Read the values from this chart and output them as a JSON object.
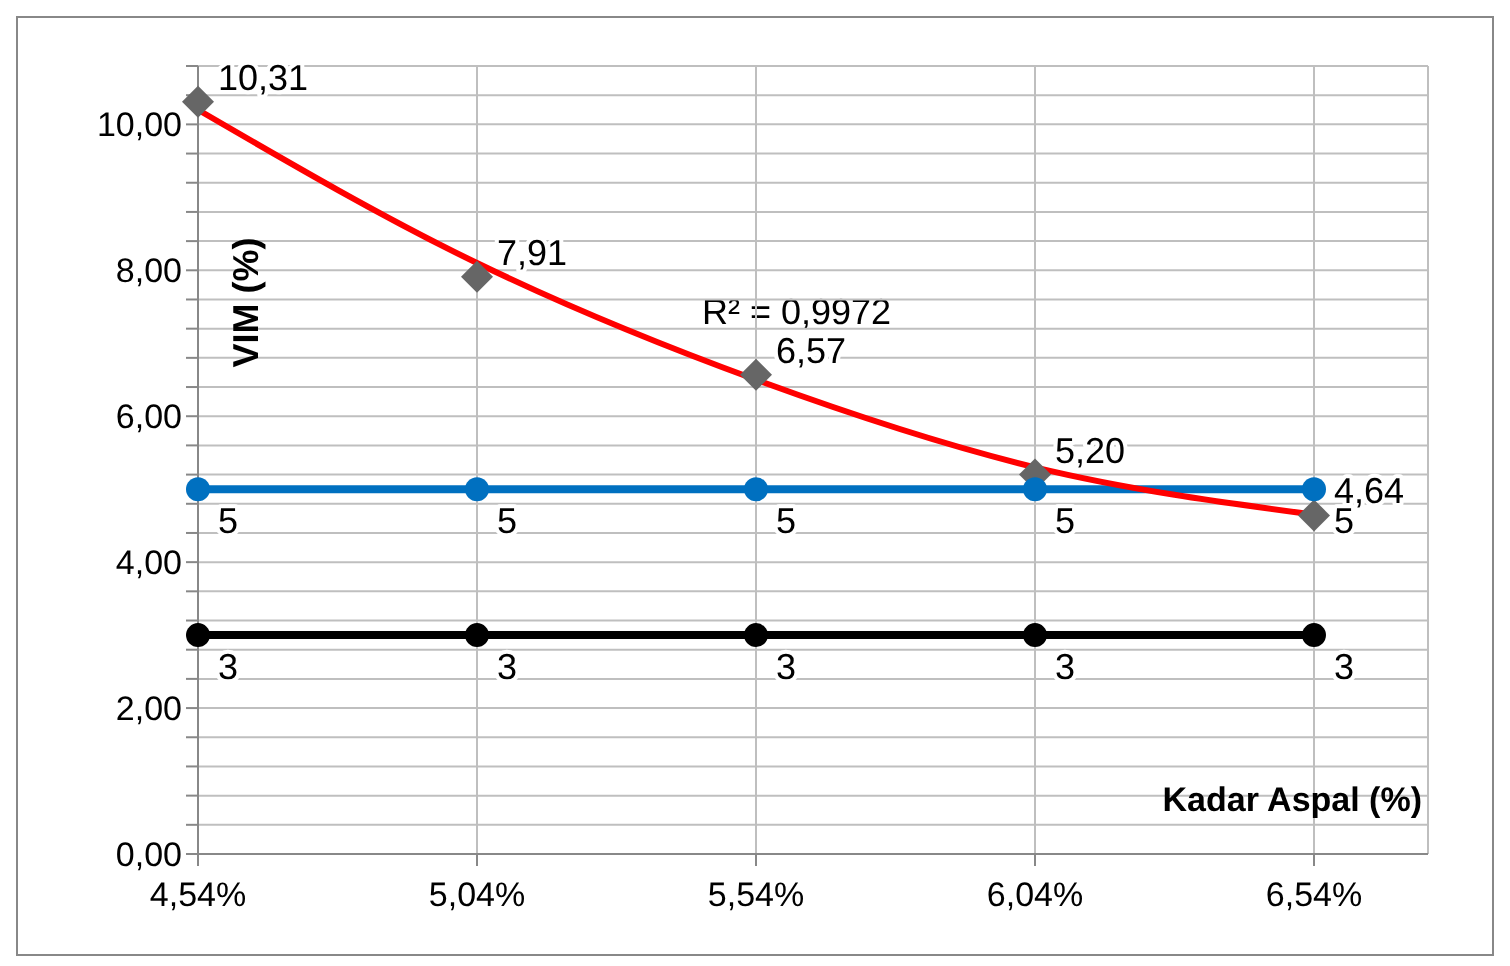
{
  "chart_data": {
    "type": "line",
    "xlabel": "Kadar Aspal (%)",
    "ylabel": "VIM (%)",
    "categories": [
      "4,54%",
      "5,04%",
      "5,54%",
      "6,04%",
      "6,54%"
    ],
    "series": [
      {
        "type": "scatter",
        "color": "#666666",
        "marker": "diamond",
        "values": [
          10.31,
          7.91,
          6.57,
          5.2,
          4.64
        ],
        "value_labels": [
          "10,31",
          "7,91",
          "6,57",
          "5,20",
          "4,64"
        ]
      },
      {
        "type": "line",
        "color": "#0070c0",
        "marker": "circle",
        "values": [
          5,
          5,
          5,
          5,
          5
        ],
        "value_labels": [
          "5",
          "5",
          "5",
          "5",
          "5"
        ]
      },
      {
        "type": "line",
        "color": "#000000",
        "marker": "circle",
        "values": [
          3,
          3,
          3,
          3,
          3
        ],
        "value_labels": [
          "3",
          "3",
          "3",
          "3",
          "3"
        ]
      },
      {
        "type": "line",
        "color": "#ff0000",
        "marker": "none",
        "values": [
          10.2,
          8.1,
          6.5,
          5.3,
          4.65
        ]
      }
    ],
    "annotations": [
      "R² = 0,9972"
    ],
    "ylim": [
      0,
      10.8
    ],
    "yticks": [
      {
        "value": 0,
        "label": "0,00"
      },
      {
        "value": 0.4,
        "label": null
      },
      {
        "value": 0.8,
        "label": null
      },
      {
        "value": 1.2,
        "label": null
      },
      {
        "value": 1.6,
        "label": null
      },
      {
        "value": 2,
        "label": "2,00"
      },
      {
        "value": 2.4,
        "label": null
      },
      {
        "value": 2.8,
        "label": null
      },
      {
        "value": 3.2,
        "label": null
      },
      {
        "value": 3.6,
        "label": null
      },
      {
        "value": 4,
        "label": "4,00"
      },
      {
        "value": 4.4,
        "label": null
      },
      {
        "value": 4.8,
        "label": null
      },
      {
        "value": 5.2,
        "label": null
      },
      {
        "value": 5.6,
        "label": null
      },
      {
        "value": 6,
        "label": "6,00"
      },
      {
        "value": 6.4,
        "label": null
      },
      {
        "value": 6.8,
        "label": null
      },
      {
        "value": 7.2,
        "label": null
      },
      {
        "value": 7.6,
        "label": null
      },
      {
        "value": 8,
        "label": "8,00"
      },
      {
        "value": 8.4,
        "label": null
      },
      {
        "value": 8.8,
        "label": null
      },
      {
        "value": 9.2,
        "label": null
      },
      {
        "value": 9.6,
        "label": null
      },
      {
        "value": 10,
        "label": "10,00"
      },
      {
        "value": 10.4,
        "label": null
      },
      {
        "value": 10.8,
        "label": null
      }
    ],
    "grid": true
  }
}
